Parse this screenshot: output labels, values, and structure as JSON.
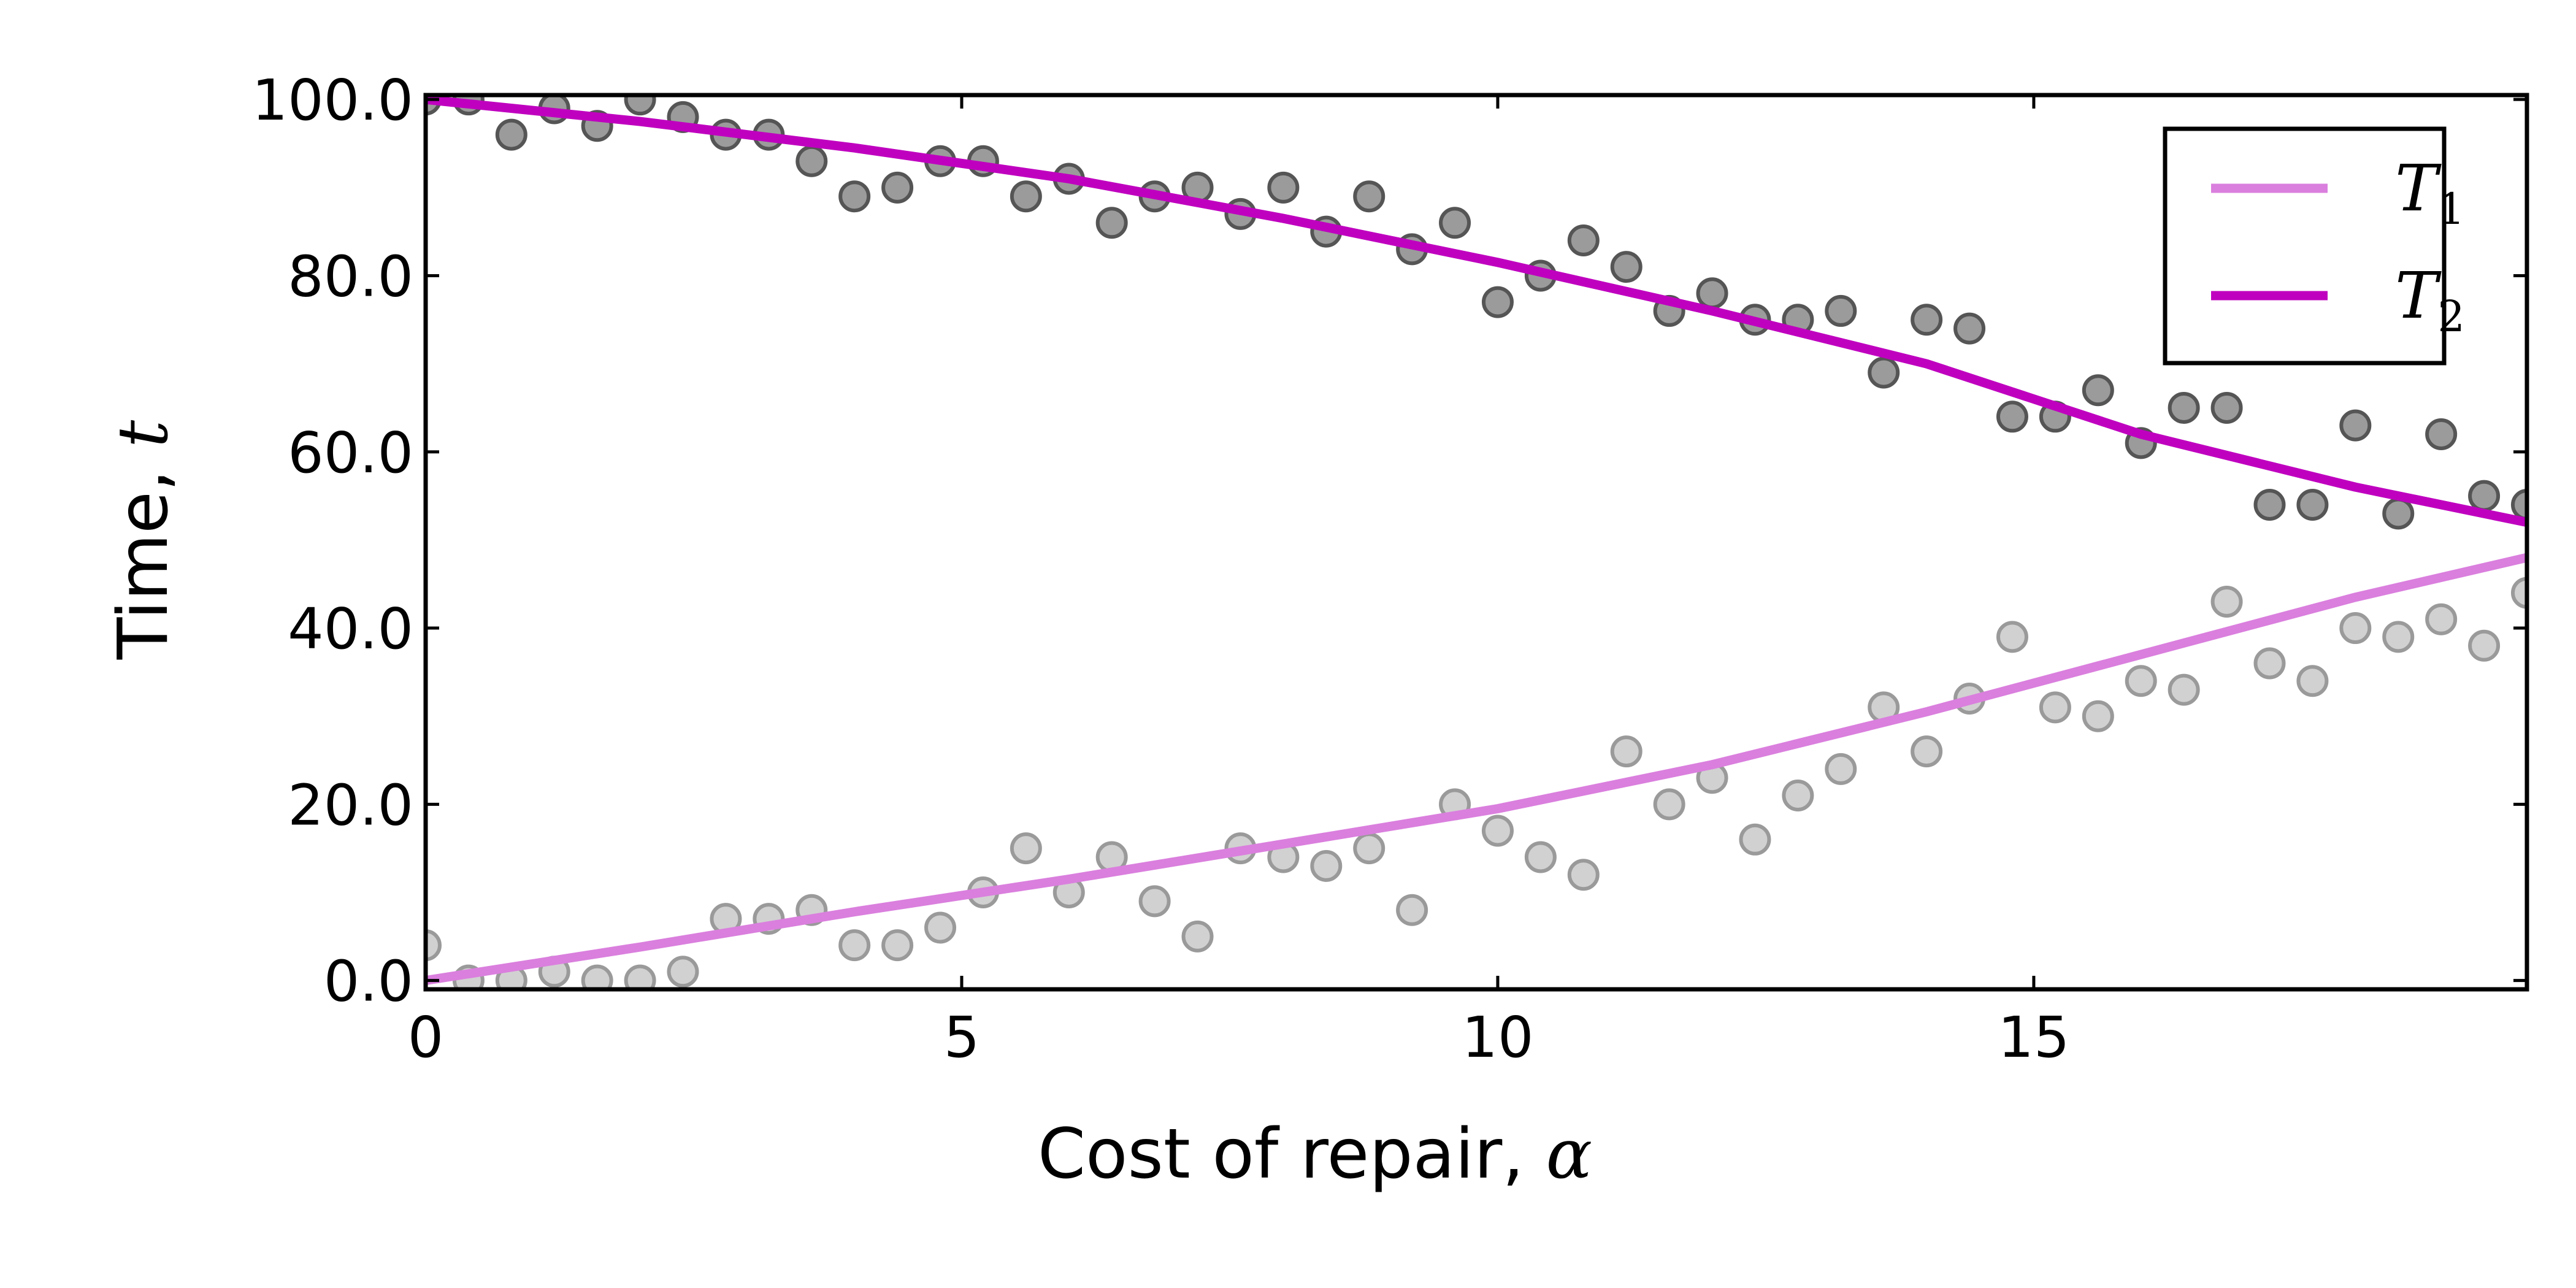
{
  "chart_data": {
    "type": "line",
    "xlabel": "Cost of repair, ",
    "xlabel_symbol": "α",
    "ylabel": "Time, ",
    "ylabel_symbol": "t",
    "xlim": [
      0,
      19.6
    ],
    "ylim": [
      -1,
      100.5
    ],
    "xticks": [
      0,
      5,
      10,
      15
    ],
    "xtick_labels": [
      "0",
      "5",
      "10",
      "15"
    ],
    "yticks": [
      0,
      20,
      40,
      60,
      80,
      100
    ],
    "ytick_labels": [
      "0.0",
      "20.0",
      "40.0",
      "60.0",
      "80.0",
      "100.0"
    ],
    "grid": false,
    "legend_position": "top-right",
    "series": [
      {
        "name": "T",
        "subscript": "1",
        "color": "#da7fde",
        "x": [
          0,
          2,
          4,
          6,
          8,
          10,
          12,
          14,
          16,
          18,
          19.6
        ],
        "y": [
          0,
          3.8,
          7.8,
          11.5,
          15.5,
          19.5,
          24.5,
          30.5,
          37,
          43.5,
          48
        ]
      },
      {
        "name": "T",
        "subscript": "2",
        "color": "#bf00bf",
        "x": [
          0,
          2,
          4,
          6,
          8,
          10,
          12,
          14,
          16,
          18,
          19.6
        ],
        "y": [
          100,
          97.5,
          94.5,
          91,
          86.5,
          81.5,
          76,
          70,
          62,
          56,
          52
        ]
      }
    ],
    "scatter": [
      {
        "color": "#c9c9c9",
        "edge": "#9a9a9a",
        "x": [
          0,
          0.4,
          0.8,
          1.2,
          1.6,
          2,
          2.4,
          2.8,
          3.2,
          3.6,
          4,
          4.4,
          4.8,
          5.2,
          5.6,
          6,
          6.4,
          6.8,
          7.2,
          7.6,
          8,
          8.4,
          8.8,
          9.2,
          9.6,
          10,
          10.4,
          10.8,
          11.2,
          11.6,
          12,
          12.4,
          12.8,
          13.2,
          13.6,
          14,
          14.4,
          14.8,
          15.2,
          15.6,
          16,
          16.4,
          16.8,
          17.2,
          17.6,
          18,
          18.4,
          18.8,
          19.2,
          19.6
        ],
        "y": [
          4,
          0,
          0,
          1,
          0,
          0,
          1,
          7,
          7,
          8,
          4,
          4,
          6,
          10,
          15,
          10,
          14,
          9,
          5,
          15,
          14,
          13,
          15,
          8,
          20,
          17,
          14,
          12,
          26,
          20,
          23,
          16,
          21,
          24,
          31,
          26,
          32,
          39,
          31,
          30,
          34,
          33,
          43,
          36,
          34,
          40,
          39,
          41,
          38,
          44
        ]
      },
      {
        "color": "#8a8a8a",
        "edge": "#555555",
        "x": [
          0,
          0.4,
          0.8,
          1.2,
          1.6,
          2,
          2.4,
          2.8,
          3.2,
          3.6,
          4,
          4.4,
          4.8,
          5.2,
          5.6,
          6,
          6.4,
          6.8,
          7.2,
          7.6,
          8,
          8.4,
          8.8,
          9.2,
          9.6,
          10,
          10.4,
          10.8,
          11.2,
          11.6,
          12,
          12.4,
          12.8,
          13.2,
          13.6,
          14,
          14.4,
          14.8,
          15.2,
          15.6,
          16,
          16.4,
          16.8,
          17.2,
          17.6,
          18,
          18.4,
          18.8,
          19.2,
          19.6
        ],
        "y": [
          100,
          100,
          96,
          99,
          97,
          100,
          98,
          96,
          96,
          93,
          89,
          90,
          93,
          93,
          89,
          91,
          86,
          89,
          90,
          87,
          90,
          85,
          89,
          83,
          86,
          77,
          80,
          84,
          81,
          76,
          78,
          75,
          75,
          76,
          69,
          75,
          74,
          64,
          64,
          67,
          61,
          65,
          65,
          54,
          54,
          63,
          53,
          62,
          55,
          54
        ]
      }
    ]
  }
}
